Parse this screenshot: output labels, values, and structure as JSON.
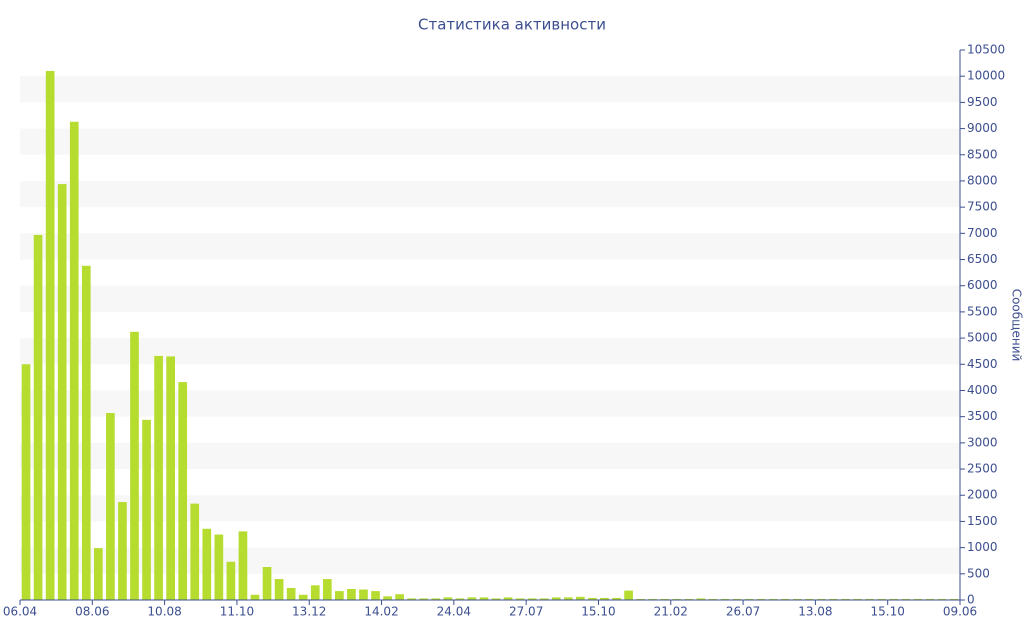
{
  "chart_data": {
    "type": "bar",
    "title": "Статистика активности",
    "y_label": "Сообщений",
    "values": [
      4500,
      6970,
      10100,
      7940,
      9130,
      6380,
      990,
      3570,
      1870,
      5120,
      3440,
      4660,
      4650,
      4160,
      1840,
      1360,
      1250,
      730,
      1310,
      100,
      630,
      400,
      230,
      100,
      280,
      400,
      170,
      210,
      200,
      170,
      70,
      110,
      30,
      30,
      30,
      50,
      30,
      50,
      50,
      30,
      50,
      30,
      30,
      30,
      50,
      50,
      60,
      40,
      40,
      40,
      180,
      20,
      20,
      20,
      20,
      20,
      30,
      20,
      20,
      20,
      20,
      20,
      20,
      20,
      20,
      20,
      20,
      20,
      20,
      20,
      20,
      20,
      20,
      20,
      20,
      20,
      20,
      20
    ],
    "color": "#b5dc2e",
    "xlim": [
      0,
      78
    ],
    "xticks": [
      {
        "value": 0,
        "label": "06.04"
      },
      {
        "value": 6,
        "label": "08.06"
      },
      {
        "value": 12,
        "label": "10.08"
      },
      {
        "value": 18,
        "label": "11.10"
      },
      {
        "value": 24,
        "label": "13.12"
      },
      {
        "value": 30,
        "label": "14.02"
      },
      {
        "value": 36,
        "label": "24.04"
      },
      {
        "value": 42,
        "label": "27.07"
      },
      {
        "value": 48,
        "label": "15.10"
      },
      {
        "value": 54,
        "label": "21.02"
      },
      {
        "value": 60,
        "label": "26.07"
      },
      {
        "value": 66,
        "label": "13.08"
      },
      {
        "value": 72,
        "label": "15.10"
      },
      {
        "value": 78,
        "label": "09.06"
      }
    ],
    "ylim": [
      0,
      10500
    ],
    "yticks": [
      0,
      500,
      1000,
      1500,
      2000,
      2500,
      3000,
      3500,
      4000,
      4500,
      5000,
      5500,
      6000,
      6500,
      7000,
      7500,
      8000,
      8500,
      9000,
      9500,
      10000,
      10500
    ],
    "grid": "bands",
    "y_axis_side": "right"
  }
}
